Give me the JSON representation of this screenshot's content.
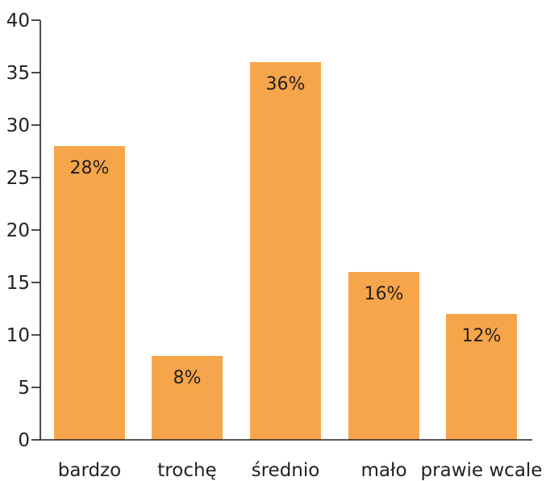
{
  "chart_data": {
    "type": "bar",
    "categories": [
      "bardzo",
      "trochę",
      "średnio",
      "mało",
      "prawie wcale"
    ],
    "values": [
      28,
      8,
      36,
      16,
      12
    ],
    "data_labels": [
      "28%",
      "8%",
      "36%",
      "16%",
      "12%"
    ],
    "title": "",
    "xlabel": "",
    "ylabel": "",
    "ylim": [
      0,
      40
    ],
    "yticks": [
      0,
      5,
      10,
      15,
      20,
      25,
      30,
      35,
      40
    ],
    "grid": false,
    "legend": "none",
    "colors": {
      "bar": "#f7a54a",
      "axis": "#231f20",
      "text": "#231f20"
    }
  }
}
